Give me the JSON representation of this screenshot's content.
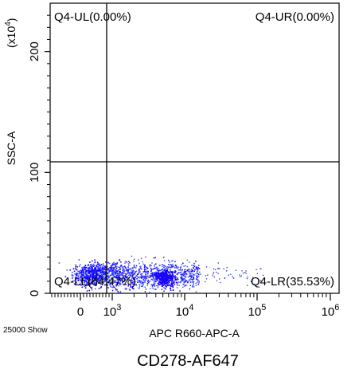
{
  "chart_data": {
    "type": "scatter",
    "title": "CD278-AF647",
    "xlabel": "APC R660-APC-A",
    "ylabel": "SSC-A",
    "y_multiplier": "(x10",
    "y_multiplier_exp": "4",
    "x_scale": "biexponential (log above 10^3)",
    "xlim": [
      "0",
      "10^6"
    ],
    "ylim": [
      0,
      240
    ],
    "x_ticks": [
      {
        "base": "0",
        "exp": ""
      },
      {
        "base": "10",
        "exp": "3"
      },
      {
        "base": "10",
        "exp": "4"
      },
      {
        "base": "10",
        "exp": "5"
      },
      {
        "base": "10",
        "exp": "6"
      }
    ],
    "y_ticks": [
      "0",
      "100",
      "200"
    ],
    "gate_x": "10^3",
    "gate_y": 110,
    "quadrants": [
      {
        "id": "UL",
        "label": "Q4-UL(0.00%)",
        "percent": 0.0
      },
      {
        "id": "UR",
        "label": "Q4-UR(0.00%)",
        "percent": 0.0
      },
      {
        "id": "LL",
        "label": "Q4-LL(64.47%)",
        "percent": 64.47
      },
      {
        "id": "LR",
        "label": "Q4-LR(35.53%)",
        "percent": 35.53
      }
    ],
    "events_text": "25000 Show",
    "colors": {
      "dense": "#1a00ff",
      "mid": "#3a5cff",
      "sparse": "#1a2ccc",
      "highlight": "#bfe8ff",
      "gate_line": "#000000"
    }
  }
}
